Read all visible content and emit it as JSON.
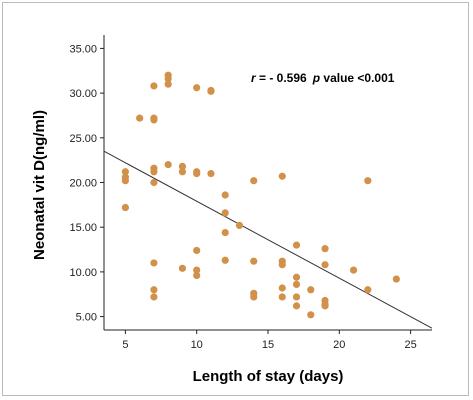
{
  "chart_data": {
    "type": "scatter",
    "title": "",
    "xlabel": "Length of stay (days)",
    "ylabel": "Neonatal vit D(ng/ml)",
    "xlim": [
      3.5,
      26.5
    ],
    "ylim": [
      3.5,
      36.5
    ],
    "xticks": [
      5,
      10,
      15,
      20,
      25
    ],
    "yticks": [
      5,
      10,
      15,
      20,
      25,
      30,
      35
    ],
    "ytick_labels": [
      "5.00",
      "10.00",
      "15.00",
      "20.00",
      "25.00",
      "30.00",
      "35.00"
    ],
    "grid": false,
    "legend": "none",
    "point_color": "#d2914a",
    "line_color": "#333333",
    "annotation": {
      "r_symbol": "r",
      "r_text": " = - 0.596",
      "p_symbol": "p",
      "p_text": " value <0.001"
    },
    "regression_line": {
      "x": [
        3.5,
        26.5
      ],
      "y": [
        23.5,
        3.7
      ]
    },
    "points": [
      {
        "x": 5,
        "y": 21.2
      },
      {
        "x": 5,
        "y": 20.6
      },
      {
        "x": 5,
        "y": 20.2
      },
      {
        "x": 5,
        "y": 17.2
      },
      {
        "x": 6,
        "y": 27.2
      },
      {
        "x": 7,
        "y": 30.8
      },
      {
        "x": 7,
        "y": 27.2
      },
      {
        "x": 7,
        "y": 27.0
      },
      {
        "x": 7,
        "y": 21.6
      },
      {
        "x": 7,
        "y": 21.2
      },
      {
        "x": 7,
        "y": 20.0
      },
      {
        "x": 7,
        "y": 11.0
      },
      {
        "x": 7,
        "y": 8.0
      },
      {
        "x": 7,
        "y": 7.2
      },
      {
        "x": 8,
        "y": 32.0
      },
      {
        "x": 8,
        "y": 31.6
      },
      {
        "x": 8,
        "y": 31.0
      },
      {
        "x": 8,
        "y": 22.0
      },
      {
        "x": 9,
        "y": 21.8
      },
      {
        "x": 9,
        "y": 21.2
      },
      {
        "x": 9,
        "y": 10.4
      },
      {
        "x": 10,
        "y": 30.6
      },
      {
        "x": 10,
        "y": 21.2
      },
      {
        "x": 10,
        "y": 21.0
      },
      {
        "x": 10,
        "y": 12.4
      },
      {
        "x": 10,
        "y": 10.2
      },
      {
        "x": 10,
        "y": 9.6
      },
      {
        "x": 11,
        "y": 30.3
      },
      {
        "x": 11,
        "y": 30.2
      },
      {
        "x": 11,
        "y": 21.0
      },
      {
        "x": 12,
        "y": 18.6
      },
      {
        "x": 12,
        "y": 16.6
      },
      {
        "x": 12,
        "y": 14.4
      },
      {
        "x": 12,
        "y": 11.3
      },
      {
        "x": 13,
        "y": 15.2
      },
      {
        "x": 14,
        "y": 20.2
      },
      {
        "x": 14,
        "y": 11.2
      },
      {
        "x": 14,
        "y": 7.6
      },
      {
        "x": 14,
        "y": 7.2
      },
      {
        "x": 16,
        "y": 20.7
      },
      {
        "x": 16,
        "y": 11.2
      },
      {
        "x": 16,
        "y": 10.8
      },
      {
        "x": 16,
        "y": 8.2
      },
      {
        "x": 16,
        "y": 7.2
      },
      {
        "x": 17,
        "y": 13.0
      },
      {
        "x": 17,
        "y": 9.4
      },
      {
        "x": 17,
        "y": 8.6
      },
      {
        "x": 17,
        "y": 7.2
      },
      {
        "x": 17,
        "y": 6.2
      },
      {
        "x": 18,
        "y": 8.0
      },
      {
        "x": 18,
        "y": 5.2
      },
      {
        "x": 19,
        "y": 12.6
      },
      {
        "x": 19,
        "y": 10.8
      },
      {
        "x": 19,
        "y": 6.8
      },
      {
        "x": 19,
        "y": 6.4
      },
      {
        "x": 19,
        "y": 6.2
      },
      {
        "x": 21,
        "y": 10.2
      },
      {
        "x": 22,
        "y": 20.2
      },
      {
        "x": 22,
        "y": 8.0
      },
      {
        "x": 24,
        "y": 9.2
      }
    ]
  }
}
